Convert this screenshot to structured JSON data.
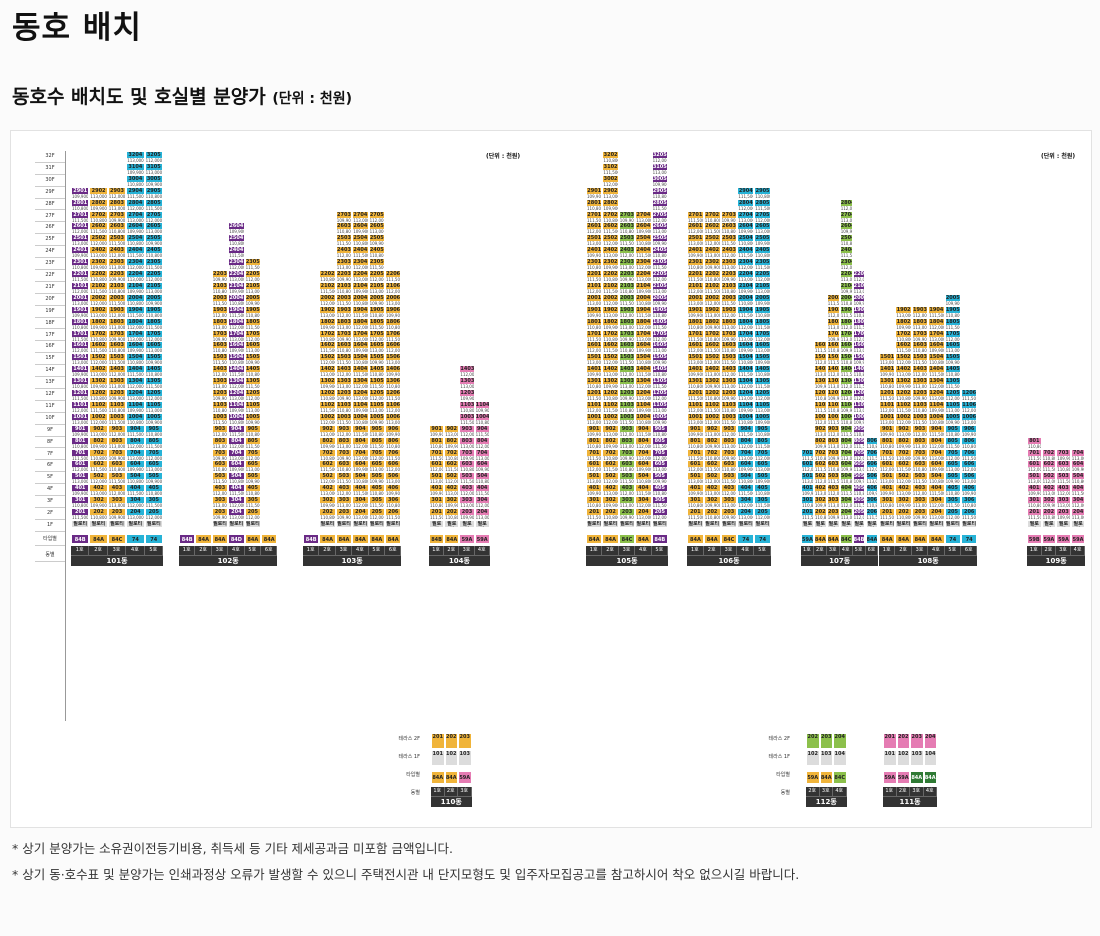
{
  "page": {
    "title": "동호 배치",
    "subtitle": "동호수 배치도 및 호실별 분양가",
    "subtitle_unit": "(단위 : 천원)"
  },
  "chart": {
    "unit_note": "(단위 : 천원)",
    "floor_labels": [
      "32F",
      "31F",
      "30F",
      "29F",
      "28F",
      "27F",
      "26F",
      "25F",
      "24F",
      "23F",
      "22F",
      "21F",
      "20F",
      "19F",
      "18F",
      "17F",
      "16F",
      "15F",
      "14F",
      "13F",
      "12F",
      "11F",
      "10F",
      "9F",
      "8F",
      "7F",
      "6F",
      "5F",
      "4F",
      "3F",
      "2F",
      "1F",
      "타입별",
      "동별"
    ],
    "buildings": [
      {
        "name": "101동",
        "lines": [
          "1호",
          "2호",
          "3호",
          "4호",
          "5호"
        ],
        "floors": 29,
        "types": [
          "84B",
          "84A",
          "84C",
          "74",
          "74"
        ],
        "colors": [
          "p",
          "o",
          "o",
          "b",
          "b"
        ],
        "extra_top": {
          "cols": [
            3,
            4
          ],
          "floors": 32
        }
      },
      {
        "name": "102동",
        "lines": [
          "1호",
          "2호",
          "3호",
          "4호",
          "5호",
          "6호"
        ],
        "floors": 16,
        "types": [
          "84B",
          "84A",
          "84A",
          "84D",
          "84A",
          "84A"
        ],
        "colors": [
          "p",
          "o",
          "o",
          "p",
          "o",
          "o"
        ],
        "steps": [
          0,
          0,
          22,
          26,
          23,
          0
        ]
      },
      {
        "name": "103동",
        "lines": [
          "1호",
          "2호",
          "3호",
          "4호",
          "5호",
          "6호"
        ],
        "floors": 23,
        "types": [
          "84B",
          "84A",
          "84A",
          "84A",
          "84A",
          "84A"
        ],
        "colors": [
          "p",
          "o",
          "o",
          "o",
          "o",
          "o"
        ],
        "steps": [
          0,
          22,
          27,
          27,
          27,
          22
        ]
      },
      {
        "name": "104동",
        "lines": [
          "1호",
          "2호",
          "3호",
          "4호"
        ],
        "floors": 9,
        "types": [
          "84B",
          "84A",
          "59A",
          "59A"
        ],
        "colors": [
          "o",
          "o",
          "k",
          "k"
        ],
        "steps": [
          9,
          9,
          14,
          11
        ]
      },
      {
        "name": "105동",
        "lines": [
          "1호",
          "2호",
          "3호",
          "4호",
          "5호"
        ],
        "floors": 29,
        "types": [
          "84A",
          "84A",
          "84C",
          "84A",
          "84B"
        ],
        "colors": [
          "o",
          "o",
          "g",
          "o",
          "p"
        ],
        "steps": [
          29,
          32,
          27,
          27,
          32
        ]
      },
      {
        "name": "106동",
        "lines": [
          "1호",
          "2호",
          "3호",
          "4호",
          "5호"
        ],
        "floors": 27,
        "types": [
          "84A",
          "84A",
          "84C",
          "74",
          "74"
        ],
        "colors": [
          "o",
          "o",
          "o",
          "b",
          "b"
        ],
        "steps": [
          27,
          27,
          27,
          29,
          29
        ]
      },
      {
        "name": "107동",
        "lines": [
          "1호",
          "2호",
          "3호",
          "4호",
          "5호",
          "6호"
        ],
        "floors": 7,
        "types": [
          "59A",
          "84A",
          "84A",
          "84C",
          "84B",
          "84A"
        ],
        "colors": [
          "b",
          "o",
          "o",
          "g",
          "p",
          "b"
        ],
        "steps": [
          7,
          16,
          20,
          28,
          22,
          8
        ]
      },
      {
        "name": "108동",
        "lines": [
          "1호",
          "2호",
          "3호",
          "4호",
          "5호",
          "6호"
        ],
        "floors": 15,
        "types": [
          "84A",
          "84A",
          "84A",
          "84A",
          "74",
          "74"
        ],
        "colors": [
          "o",
          "o",
          "o",
          "o",
          "b",
          "b"
        ],
        "steps": [
          15,
          19,
          19,
          19,
          20,
          12
        ]
      },
      {
        "name": "109동",
        "lines": [
          "1호",
          "2호",
          "3호",
          "4호"
        ],
        "floors": 8,
        "types": [
          "59B",
          "59A",
          "59A",
          "59A"
        ],
        "colors": [
          "k",
          "k",
          "k",
          "k"
        ],
        "steps": [
          8,
          7,
          7,
          7
        ]
      }
    ],
    "mini": [
      {
        "name": "110동",
        "rows": [
          "테라스 2F",
          "테라스 1F",
          "타입별",
          "동별"
        ],
        "units": [
          "201",
          "202",
          "203"
        ],
        "lines": [
          "1호",
          "2호",
          "3호"
        ],
        "types": [
          "84A",
          "84A",
          "59A"
        ],
        "colors": [
          "o",
          "o",
          "k"
        ]
      },
      {
        "name": "112동",
        "rows": [
          "테라스 2F",
          "테라스 1F",
          "타입별",
          "동별"
        ],
        "units": [
          "202",
          "203",
          "204"
        ],
        "lines": [
          "2호",
          "3호",
          "4호"
        ],
        "types": [
          "59A",
          "84A",
          "84C"
        ],
        "colors": [
          "o",
          "o",
          "g"
        ]
      },
      {
        "name": "111동",
        "rows": [],
        "units": [
          "201",
          "202",
          "203",
          "204"
        ],
        "lines": [
          "1호",
          "2호",
          "3호",
          "4호"
        ],
        "types": [
          "59A",
          "59A",
          "84A",
          "84A"
        ],
        "colors": [
          "k",
          "k",
          "d",
          "d"
        ]
      }
    ],
    "pilotis_label": "필로티"
  },
  "notes": [
    "* 상기 분양가는 소유권이전등기비용, 취득세 등 기타 제세공과금 미포함 금액입니다.",
    "* 상기 동·호수표 및 분양가는 인쇄과정상 오류가 발생할 수 있으니 주택전시관 내 단지모형도 및 입주자모집공고를 참고하시어 착오 없으시길 바랍니다."
  ]
}
